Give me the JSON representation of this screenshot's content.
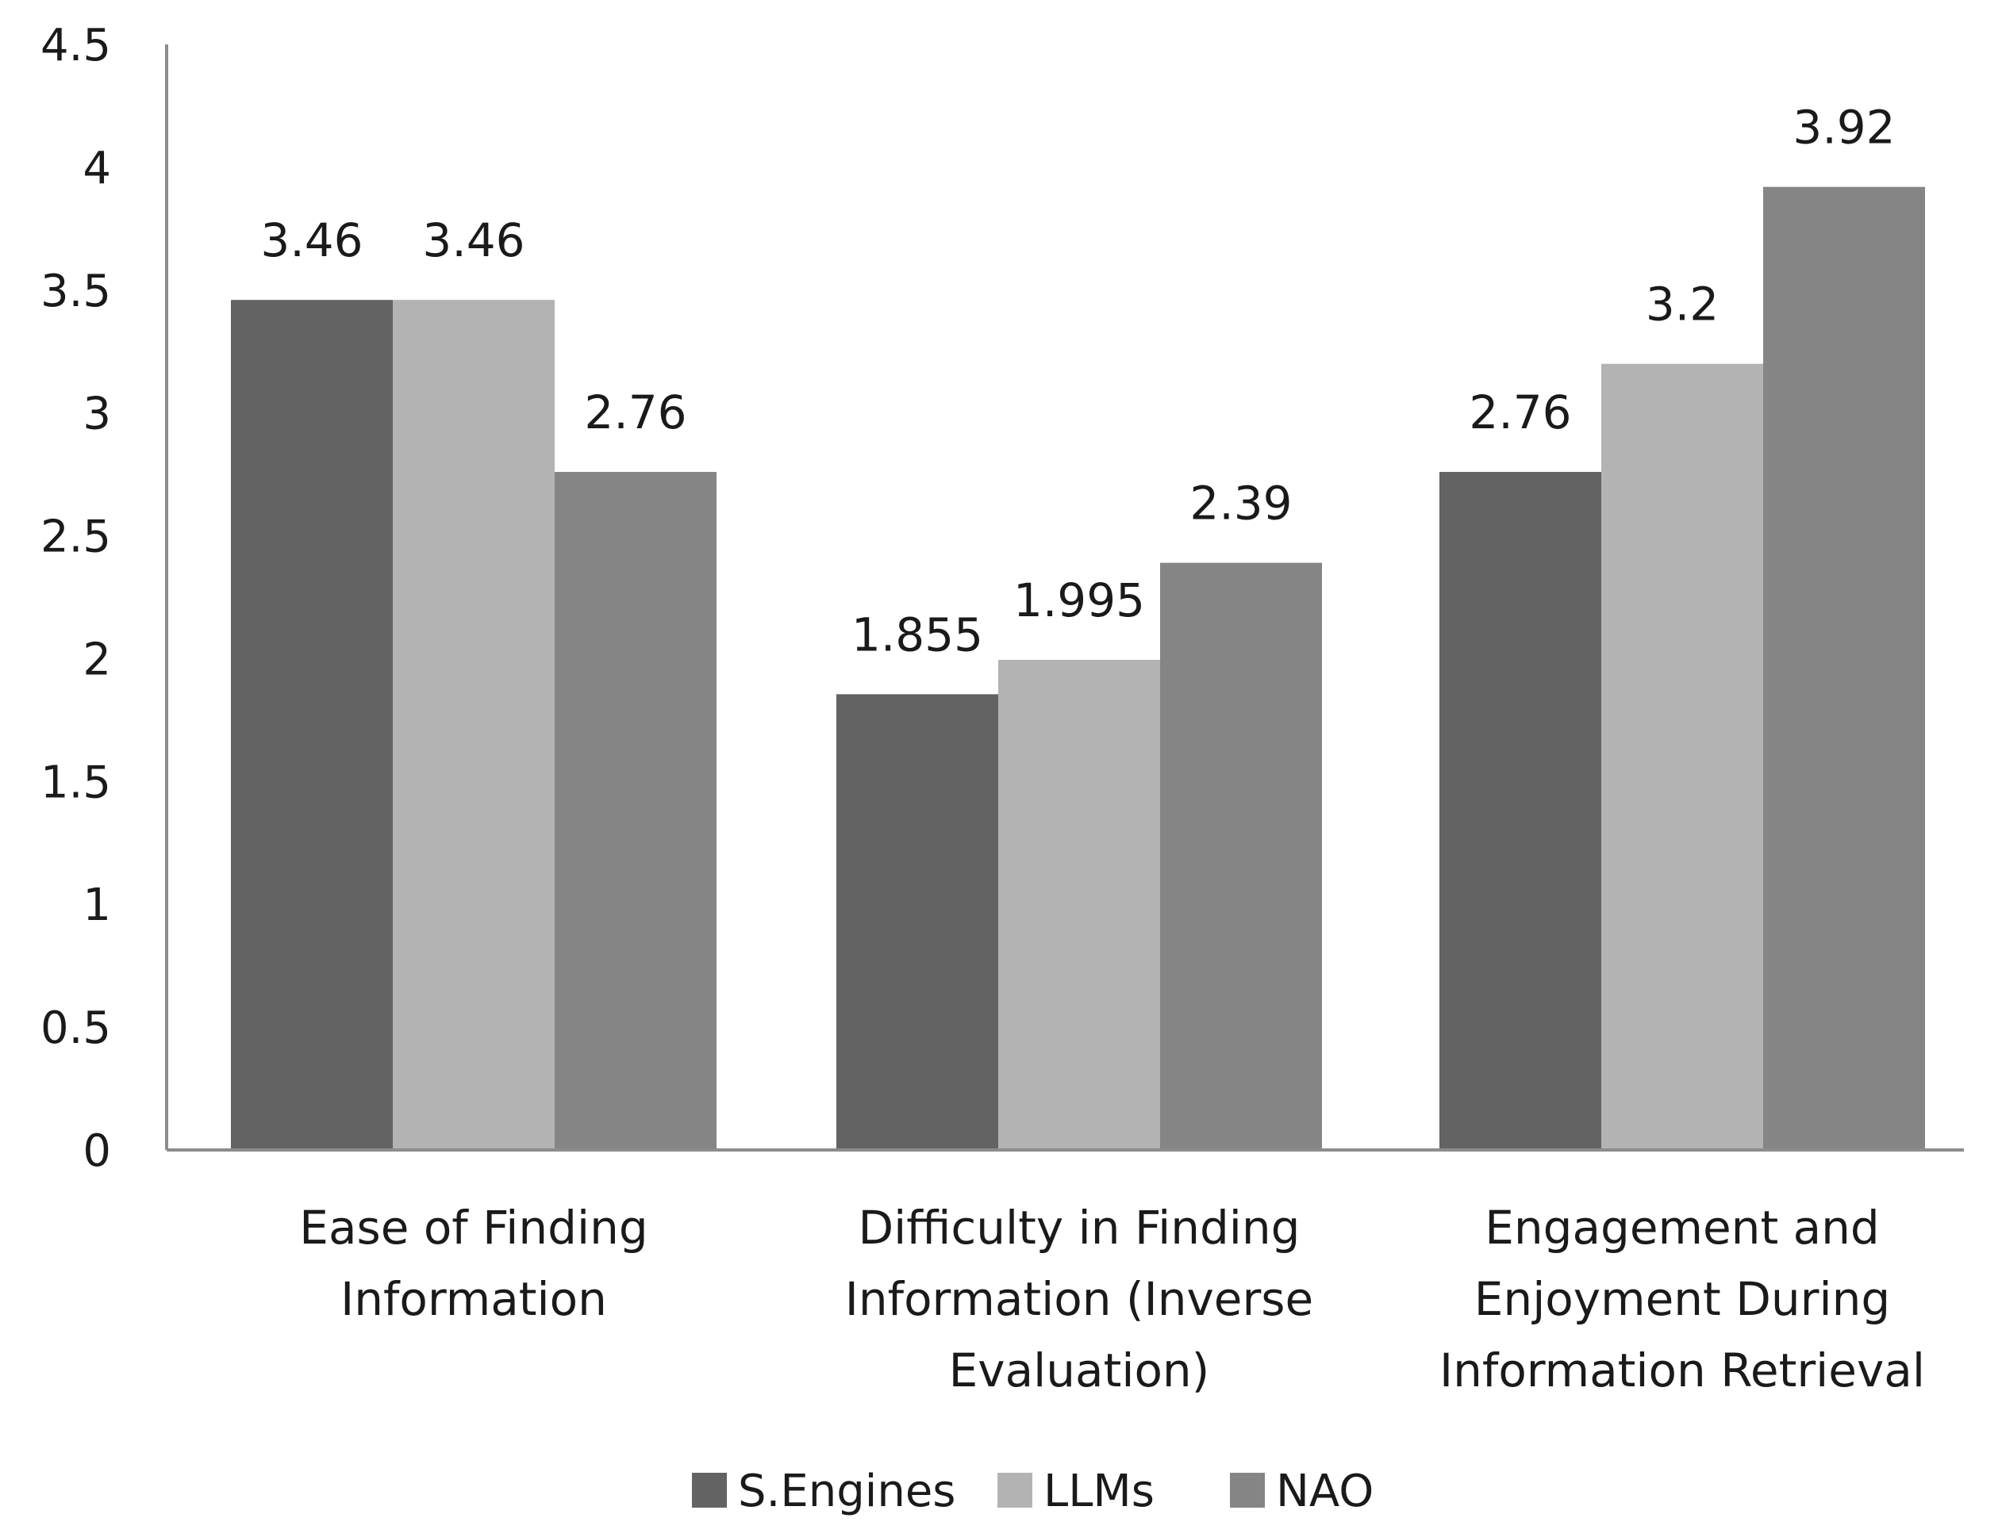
{
  "chart_data": {
    "type": "bar",
    "title": "",
    "xlabel": "",
    "ylabel": "",
    "ylim": [
      0,
      4.5
    ],
    "yticks": [
      "0",
      "0.5",
      "1",
      "1.5",
      "2",
      "2.5",
      "3",
      "3.5",
      "4",
      "4.5"
    ],
    "grid": false,
    "legend_position": "bottom",
    "categories": [
      [
        "Ease of Finding",
        "Information"
      ],
      [
        "Difficulty in Finding",
        "Information (Inverse",
        "Evaluation)"
      ],
      [
        "Engagement and",
        "Enjoyment During",
        "Information Retrieval"
      ]
    ],
    "series": [
      {
        "name": "S.Engines",
        "color": "#636363",
        "values": [
          3.46,
          1.855,
          2.76
        ],
        "labels": [
          "3.46",
          "1.855",
          "2.76"
        ]
      },
      {
        "name": "LLMs",
        "color": "#b3b3b3",
        "values": [
          3.46,
          1.995,
          3.2
        ],
        "labels": [
          "3.46",
          "1.995",
          "3.2"
        ]
      },
      {
        "name": "NAO",
        "color": "#858585",
        "values": [
          2.76,
          2.39,
          3.92
        ],
        "labels": [
          "2.76",
          "2.39",
          "3.92"
        ]
      }
    ]
  }
}
